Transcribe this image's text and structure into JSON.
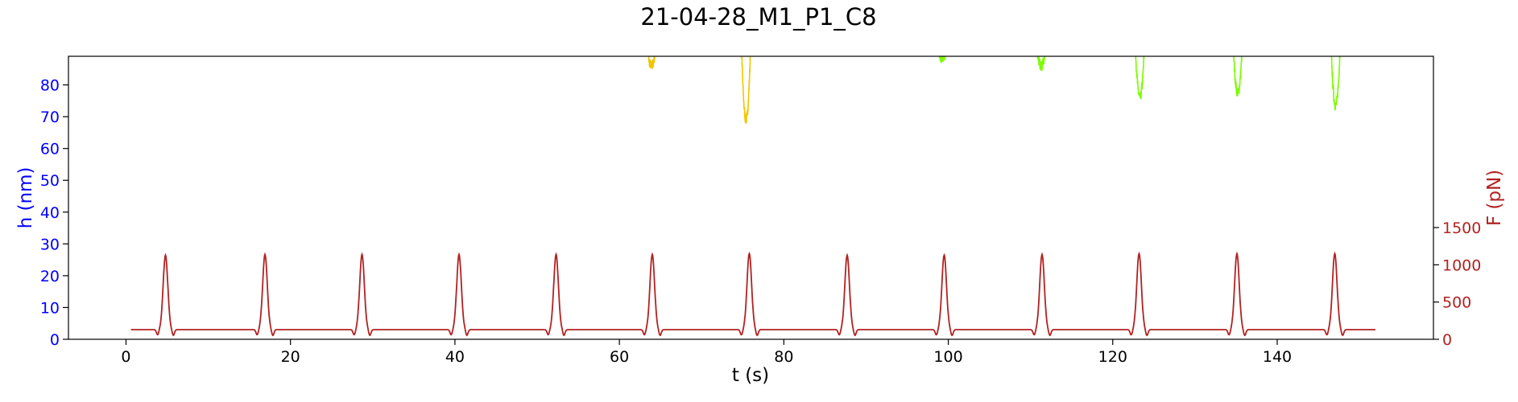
{
  "chart_data": {
    "type": "line",
    "title": "21-04-28_M1_P1_C8",
    "xlabel": "t (s)",
    "ylabel_left": "h (nm)",
    "ylabel_right": "F (pN)",
    "xlim": [
      -7,
      159
    ],
    "ylim_left": [
      0,
      89
    ],
    "ylim_right": [
      0,
      3800
    ],
    "x_ticks": [
      0,
      20,
      40,
      60,
      80,
      100,
      120,
      140
    ],
    "y_ticks_left": [
      0,
      10,
      20,
      30,
      40,
      50,
      60,
      70,
      80
    ],
    "y_ticks_right": [
      0,
      500,
      1000,
      1500
    ],
    "grid": false,
    "colors": {
      "left_axis": "#0000ff",
      "right_axis": "#b22222",
      "force_line": "#b22222",
      "height_orange": "#f2c500",
      "height_green": "#7cfc00"
    },
    "force_series": {
      "baseline": 130,
      "peak_times": [
        4.8,
        16.9,
        28.7,
        40.5,
        52.3,
        64.0,
        75.8,
        87.7,
        99.5,
        111.4,
        123.2,
        135.1,
        147.0
      ],
      "peak_values": [
        1130,
        1140,
        1140,
        1140,
        1140,
        1140,
        1150,
        1130,
        1130,
        1140,
        1150,
        1150,
        1150
      ],
      "dip_value": 50,
      "t_start": 0.6,
      "t_end": 152.0
    },
    "height_dips": [
      {
        "t": 63.9,
        "min": 86,
        "color": "orange"
      },
      {
        "t": 75.4,
        "min": 69,
        "color": "orange"
      },
      {
        "t": 99.3,
        "min": 88,
        "color": "green"
      },
      {
        "t": 111.3,
        "min": 86,
        "color": "green"
      },
      {
        "t": 123.3,
        "min": 76,
        "color": "green"
      },
      {
        "t": 135.2,
        "min": 77.5,
        "color": "green"
      },
      {
        "t": 147.1,
        "min": 73.5,
        "color": "green"
      }
    ]
  }
}
